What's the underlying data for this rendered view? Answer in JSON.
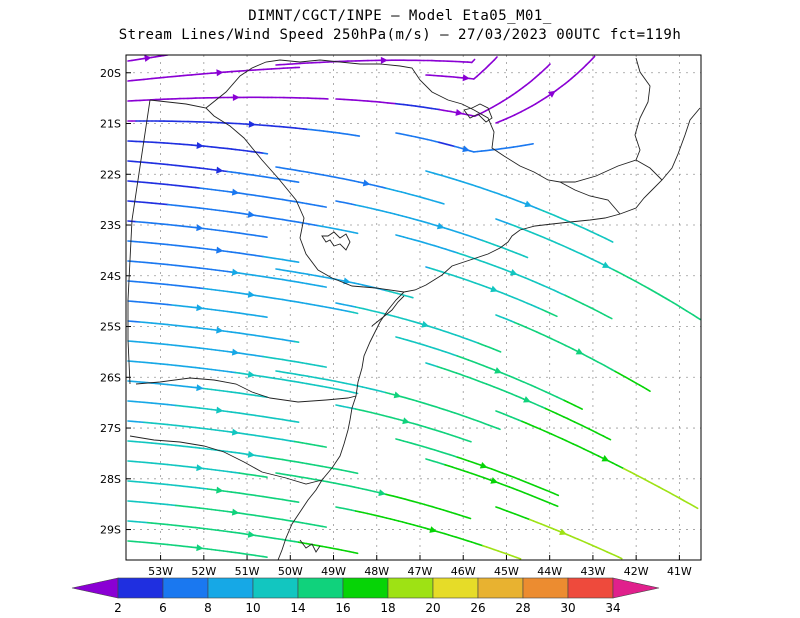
{
  "header": {
    "line1": "DIMNT/CGCT/INPE –  Model Eta05_M01_",
    "line2": "Stream Lines/Wind Speed 250hPa(m/s) –  27/03/2023 00UTC fct=119h"
  },
  "map": {
    "lat_labels": [
      "20S",
      "21S",
      "22S",
      "23S",
      "24S",
      "25S",
      "26S",
      "27S",
      "28S",
      "29S"
    ],
    "lon_labels": [
      "53W",
      "52W",
      "51W",
      "50W",
      "49W",
      "48W",
      "47W",
      "46W",
      "45W",
      "44W",
      "43W",
      "42W",
      "41W"
    ],
    "lat_range": [
      -29.6,
      -19.65
    ],
    "lon_range": [
      -53.8,
      -40.5
    ],
    "grid": true
  },
  "colorbar": {
    "colors": [
      "#8a00d4",
      "#1f2fe0",
      "#1a78f0",
      "#16a8e6",
      "#12c6c0",
      "#10d27c",
      "#06d406",
      "#9ee214",
      "#e6dc28",
      "#e8b230",
      "#ec8c30",
      "#ee4a3c",
      "#e0208c"
    ],
    "labels": [
      "2",
      "6",
      "8",
      "10",
      "14",
      "16",
      "18",
      "20",
      "26",
      "28",
      "30",
      "34"
    ]
  }
}
